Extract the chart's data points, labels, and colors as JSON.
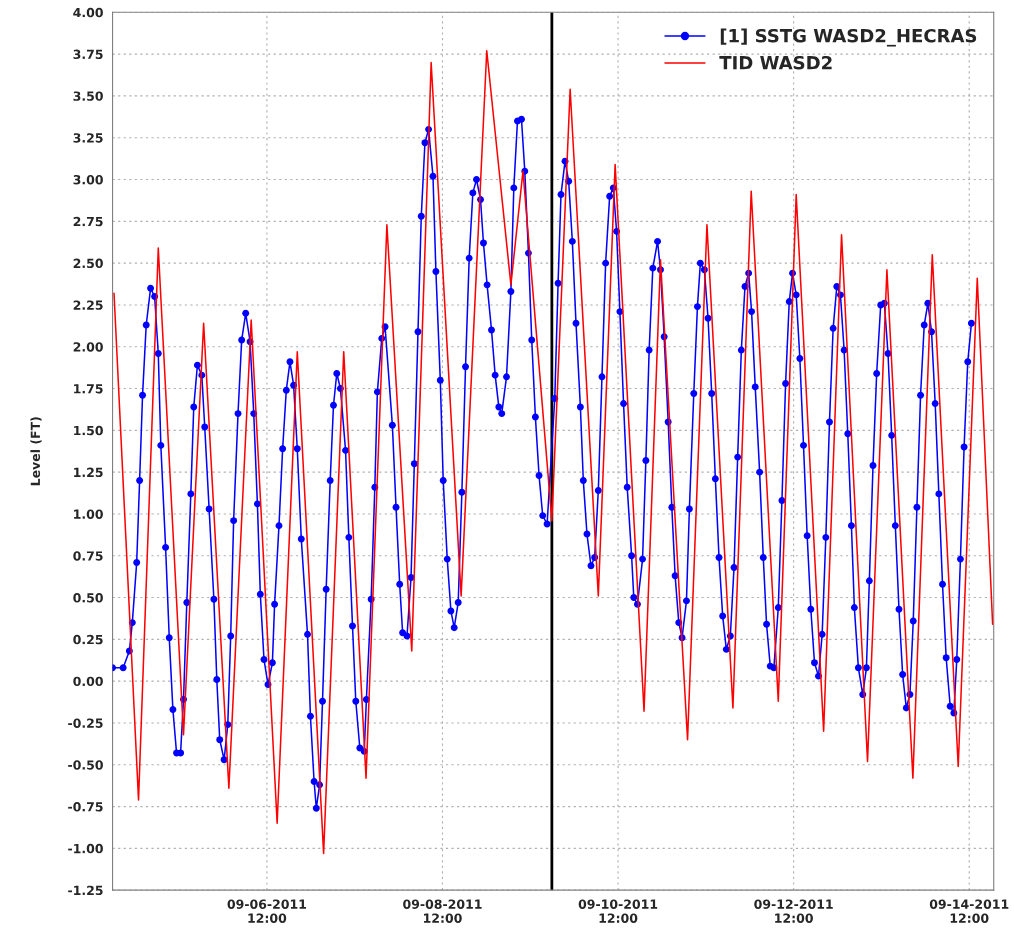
{
  "chart_data": {
    "type": "line",
    "ylabel": "Level (FT)",
    "xlim": [
      "2011-09-04T17:48",
      "2011-09-14T18:42"
    ],
    "xticks": [
      {
        "value": "2011-09-06T12:00",
        "label": "09-06-2011\n12:00"
      },
      {
        "value": "2011-09-08T12:00",
        "label": "09-08-2011\n12:00"
      },
      {
        "value": "2011-09-10T12:00",
        "label": "09-10-2011\n12:00"
      },
      {
        "value": "2011-09-12T12:00",
        "label": "09-12-2011\n12:00"
      },
      {
        "value": "2011-09-14T12:00",
        "label": "09-14-2011\n12:00"
      }
    ],
    "ylim": [
      -1.25,
      4.0
    ],
    "yticks": [
      {
        "value": -1.25,
        "label": "-1.25"
      },
      {
        "value": -1.0,
        "label": "-1.00"
      },
      {
        "value": -0.75,
        "label": "-0.75"
      },
      {
        "value": -0.5,
        "label": "-0.50"
      },
      {
        "value": -0.25,
        "label": "-0.25"
      },
      {
        "value": 0,
        "label": "0.00"
      },
      {
        "value": 0.25,
        "label": "0.25"
      },
      {
        "value": 0.5,
        "label": "0.50"
      },
      {
        "value": 0.75,
        "label": "0.75"
      },
      {
        "value": 1.0,
        "label": "1.00"
      },
      {
        "value": 1.25,
        "label": "1.25"
      },
      {
        "value": 1.5,
        "label": "1.50"
      },
      {
        "value": 1.75,
        "label": "1.75"
      },
      {
        "value": 2.0,
        "label": "2.00"
      },
      {
        "value": 2.25,
        "label": "2.25"
      },
      {
        "value": 2.5,
        "label": "2.50"
      },
      {
        "value": 2.75,
        "label": "2.75"
      },
      {
        "value": 3.0,
        "label": "3.00"
      },
      {
        "value": 3.25,
        "label": "3.25"
      },
      {
        "value": 3.5,
        "label": "3.50"
      },
      {
        "value": 3.75,
        "label": "3.75"
      },
      {
        "value": 4.0,
        "label": "4.00"
      }
    ],
    "grid": true,
    "legend": "top right",
    "ref_lines": [
      {
        "axis": "x",
        "value": "2011-09-09T17:54",
        "color": "#000000"
      }
    ],
    "series": [
      {
        "name": "[1] SSTG WASD2_HECRAS",
        "color": "#0000ff",
        "marker": "circle",
        "x": [
          "2011-09-04T17:48",
          "2011-09-04T20:42",
          "2011-09-04T22:24",
          "2011-09-04T23:12",
          "2011-09-05T00:24",
          "2011-09-05T01:12",
          "2011-09-05T02:00",
          "2011-09-05T03:00",
          "2011-09-05T04:12",
          "2011-09-05T05:18",
          "2011-09-05T06:18",
          "2011-09-05T07:00",
          "2011-09-05T08:18",
          "2011-09-05T09:18",
          "2011-09-05T10:18",
          "2011-09-05T11:18",
          "2011-09-05T12:24",
          "2011-09-05T13:12",
          "2011-09-05T14:06",
          "2011-09-05T15:12",
          "2011-09-05T16:00",
          "2011-09-05T17:00",
          "2011-09-05T18:12",
          "2011-09-05T19:00",
          "2011-09-05T20:12",
          "2011-09-05T21:30",
          "2011-09-05T22:18",
          "2011-09-05T23:06",
          "2011-09-06T00:18",
          "2011-09-06T01:18",
          "2011-09-06T02:06",
          "2011-09-06T02:54",
          "2011-09-06T04:06",
          "2011-09-06T05:06",
          "2011-09-06T06:12",
          "2011-09-06T07:24",
          "2011-09-06T08:24",
          "2011-09-06T09:24",
          "2011-09-06T10:12",
          "2011-09-06T11:12",
          "2011-09-06T12:18",
          "2011-09-06T13:30",
          "2011-09-06T14:06",
          "2011-09-06T15:18",
          "2011-09-06T16:18",
          "2011-09-06T17:18",
          "2011-09-06T18:18",
          "2011-09-06T19:18",
          "2011-09-06T20:18",
          "2011-09-06T21:24",
          "2011-09-06T23:06",
          "2011-09-06T23:54",
          "2011-09-07T00:54",
          "2011-09-07T01:30",
          "2011-09-07T02:24",
          "2011-09-07T03:12",
          "2011-09-07T04:12",
          "2011-09-07T05:18",
          "2011-09-07T06:12",
          "2011-09-07T07:06",
          "2011-09-07T08:06",
          "2011-09-07T09:30",
          "2011-09-07T10:24",
          "2011-09-07T11:24",
          "2011-09-07T12:18",
          "2011-09-07T13:24",
          "2011-09-07T14:36",
          "2011-09-07T15:12",
          "2011-09-07T16:30",
          "2011-09-07T17:30",
          "2011-09-07T18:12",
          "2011-09-07T19:24",
          "2011-09-07T20:18",
          "2011-09-07T22:18",
          "2011-09-07T23:18",
          "2011-09-08T00:18",
          "2011-09-08T01:06",
          "2011-09-08T02:18",
          "2011-09-08T03:24",
          "2011-09-08T04:18",
          "2011-09-08T05:18",
          "2011-09-08T06:12",
          "2011-09-08T07:12",
          "2011-09-08T08:12",
          "2011-09-08T09:24",
          "2011-09-08T10:12",
          "2011-09-08T11:24",
          "2011-09-08T12:12",
          "2011-09-08T13:18",
          "2011-09-08T14:18",
          "2011-09-08T15:12",
          "2011-09-08T16:18",
          "2011-09-08T17:18",
          "2011-09-08T18:18",
          "2011-09-08T19:18",
          "2011-09-08T20:18",
          "2011-09-08T21:18",
          "2011-09-08T22:24",
          "2011-09-08T23:12",
          "2011-09-09T00:12",
          "2011-09-09T01:24",
          "2011-09-09T02:24",
          "2011-09-09T03:24",
          "2011-09-09T04:12",
          "2011-09-09T05:30",
          "2011-09-09T06:42",
          "2011-09-09T07:30",
          "2011-09-09T08:30",
          "2011-09-09T09:36",
          "2011-09-09T10:30",
          "2011-09-09T11:30",
          "2011-09-09T12:24",
          "2011-09-09T13:24",
          "2011-09-09T14:24",
          "2011-09-09T15:24",
          "2011-09-09T16:36",
          "2011-09-09T18:42",
          "2011-09-09T19:36",
          "2011-09-09T20:24",
          "2011-09-09T21:30",
          "2011-09-09T22:30",
          "2011-09-09T23:30",
          "2011-09-10T00:30",
          "2011-09-10T01:42",
          "2011-09-10T02:30",
          "2011-09-10T03:30",
          "2011-09-10T04:36",
          "2011-09-10T05:36",
          "2011-09-10T06:36",
          "2011-09-10T07:36",
          "2011-09-10T08:36",
          "2011-09-10T09:42",
          "2011-09-10T10:42",
          "2011-09-10T11:36",
          "2011-09-10T12:30",
          "2011-09-10T13:30",
          "2011-09-10T14:30",
          "2011-09-10T15:42",
          "2011-09-10T16:18",
          "2011-09-10T17:18",
          "2011-09-10T18:42",
          "2011-09-10T19:36",
          "2011-09-10T20:30",
          "2011-09-10T21:30",
          "2011-09-10T22:48",
          "2011-09-10T23:36",
          "2011-09-11T00:36",
          "2011-09-11T01:42",
          "2011-09-11T02:42",
          "2011-09-11T03:36",
          "2011-09-11T04:36",
          "2011-09-11T05:30",
          "2011-09-11T06:42",
          "2011-09-11T07:30",
          "2011-09-11T08:42",
          "2011-09-11T09:42",
          "2011-09-11T10:30",
          "2011-09-11T11:36",
          "2011-09-11T12:36",
          "2011-09-11T13:36",
          "2011-09-11T14:36",
          "2011-09-11T15:36",
          "2011-09-11T16:36",
          "2011-09-11T17:36",
          "2011-09-11T18:42",
          "2011-09-11T19:42",
          "2011-09-11T20:42",
          "2011-09-11T21:42",
          "2011-09-11T22:42",
          "2011-09-11T23:42",
          "2011-09-12T00:30",
          "2011-09-12T01:30",
          "2011-09-12T02:42",
          "2011-09-12T03:42",
          "2011-09-12T04:36",
          "2011-09-12T05:36",
          "2011-09-12T06:36",
          "2011-09-12T07:48",
          "2011-09-12T08:48",
          "2011-09-12T09:48",
          "2011-09-12T10:48",
          "2011-09-12T11:42",
          "2011-09-12T12:42",
          "2011-09-12T13:42",
          "2011-09-12T14:42",
          "2011-09-12T15:42",
          "2011-09-12T16:42",
          "2011-09-12T17:42",
          "2011-09-12T18:48",
          "2011-09-12T19:48",
          "2011-09-12T20:48",
          "2011-09-12T21:48",
          "2011-09-12T22:48",
          "2011-09-12T23:48",
          "2011-09-13T00:48",
          "2011-09-13T01:48",
          "2011-09-13T02:48",
          "2011-09-13T03:48",
          "2011-09-13T04:36",
          "2011-09-13T05:42",
          "2011-09-13T06:54",
          "2011-09-13T07:54",
          "2011-09-13T08:42",
          "2011-09-13T09:42",
          "2011-09-13T10:42",
          "2011-09-13T11:48",
          "2011-09-13T12:48",
          "2011-09-13T13:48",
          "2011-09-13T14:48",
          "2011-09-13T15:48",
          "2011-09-13T16:48",
          "2011-09-13T17:48",
          "2011-09-13T18:48",
          "2011-09-13T19:48",
          "2011-09-13T20:42",
          "2011-09-13T21:42",
          "2011-09-13T22:42",
          "2011-09-13T23:42",
          "2011-09-14T00:42",
          "2011-09-14T01:42",
          "2011-09-14T02:42",
          "2011-09-14T03:42",
          "2011-09-14T04:42",
          "2011-09-14T05:42",
          "2011-09-14T06:48",
          "2011-09-14T07:48",
          "2011-09-14T08:36",
          "2011-09-14T09:36",
          "2011-09-14T10:36",
          "2011-09-14T11:36",
          "2011-09-14T12:36"
        ],
        "values": [
          0.08,
          0.08,
          0.18,
          0.35,
          0.71,
          1.2,
          1.71,
          2.13,
          2.35,
          2.3,
          1.96,
          1.41,
          0.8,
          0.26,
          -0.17,
          -0.43,
          -0.43,
          -0.11,
          0.47,
          1.12,
          1.64,
          1.89,
          1.83,
          1.52,
          1.03,
          0.49,
          0.01,
          -0.35,
          -0.47,
          -0.26,
          0.27,
          0.96,
          1.6,
          2.04,
          2.2,
          2.03,
          1.6,
          1.06,
          0.52,
          0.13,
          -0.02,
          0.11,
          0.46,
          0.93,
          1.39,
          1.74,
          1.91,
          1.77,
          1.39,
          0.85,
          0.28,
          -0.21,
          -0.6,
          -0.76,
          -0.62,
          -0.12,
          0.55,
          1.2,
          1.65,
          1.84,
          1.75,
          1.38,
          0.86,
          0.33,
          -0.12,
          -0.4,
          -0.42,
          -0.11,
          0.49,
          1.16,
          1.73,
          2.05,
          2.12,
          1.53,
          1.04,
          0.58,
          0.29,
          0.27,
          0.62,
          1.3,
          2.09,
          2.78,
          3.22,
          3.3,
          3.02,
          2.45,
          1.8,
          1.2,
          0.73,
          0.42,
          0.32,
          0.47,
          1.13,
          1.88,
          2.53,
          2.92,
          3.0,
          2.88,
          2.62,
          2.37,
          2.1,
          1.83,
          1.64,
          1.6,
          1.82,
          2.33,
          2.95,
          3.35,
          3.36,
          3.05,
          2.56,
          2.04,
          1.58,
          1.23,
          0.99,
          0.94,
          1.69,
          2.38,
          2.91,
          3.11,
          2.99,
          2.63,
          2.14,
          1.64,
          1.2,
          0.88,
          0.69,
          0.74,
          1.14,
          1.82,
          2.5,
          2.9,
          2.95,
          2.69,
          2.21,
          1.66,
          1.16,
          0.75,
          0.5,
          0.46,
          0.73,
          1.32,
          1.98,
          2.47,
          2.63,
          2.46,
          2.06,
          1.55,
          1.04,
          0.63,
          0.35,
          0.26,
          0.48,
          1.03,
          1.72,
          2.24,
          2.5,
          2.46,
          2.17,
          1.72,
          1.21,
          0.74,
          0.39,
          0.19,
          0.27,
          0.68,
          1.34,
          1.98,
          2.36,
          2.44,
          2.21,
          1.76,
          1.25,
          0.74,
          0.34,
          0.09,
          0.08,
          0.44,
          1.08,
          1.78,
          2.27,
          2.44,
          2.31,
          1.93,
          1.41,
          0.87,
          0.43,
          0.11,
          0.03,
          0.28,
          0.86,
          1.55,
          2.11,
          2.36,
          2.31,
          1.98,
          1.48,
          0.93,
          0.44,
          0.08,
          -0.08,
          0.08,
          0.6,
          1.29,
          1.84,
          2.25,
          2.26,
          1.96,
          1.47,
          0.93,
          0.43,
          0.04,
          -0.16,
          -0.08,
          0.36,
          1.04,
          1.71,
          2.13,
          2.26,
          2.09,
          1.66,
          1.12,
          0.58,
          0.14,
          -0.15,
          -0.19,
          0.13,
          0.73,
          1.4,
          1.91,
          2.14
        ]
      },
      {
        "name": "TID WASD2",
        "color": "#ff0000",
        "marker": "none",
        "x": [
          "2011-09-04T18:12",
          "2011-09-05T00:54",
          "2011-09-05T06:18",
          "2011-09-05T13:12",
          "2011-09-05T18:42",
          "2011-09-06T01:36",
          "2011-09-06T07:42",
          "2011-09-06T14:48",
          "2011-09-06T20:18",
          "2011-09-07T03:30",
          "2011-09-07T09:00",
          "2011-09-07T15:06",
          "2011-09-07T20:48",
          "2011-09-08T03:36",
          "2011-09-08T08:54",
          "2011-09-08T17:06",
          "2011-09-09T00:06",
          "2011-09-09T06:42",
          "2011-09-09T10:00",
          "2011-09-09T17:54",
          "2011-09-09T22:54",
          "2011-09-10T06:36",
          "2011-09-10T11:12",
          "2011-09-10T19:06",
          "2011-09-10T23:36",
          "2011-09-11T07:00",
          "2011-09-11T12:18",
          "2011-09-11T19:24",
          "2011-09-12T00:24",
          "2011-09-12T07:48",
          "2011-09-12T12:42",
          "2011-09-12T20:12",
          "2011-09-13T01:06",
          "2011-09-13T08:12",
          "2011-09-13T13:30",
          "2011-09-13T20:36",
          "2011-09-14T01:54",
          "2011-09-14T09:00",
          "2011-09-14T14:12",
          "2011-09-14T18:24"
        ],
        "values": [
          2.32,
          -0.71,
          2.59,
          -0.32,
          2.14,
          -0.64,
          2.16,
          -0.85,
          1.97,
          -1.03,
          1.97,
          -0.58,
          2.73,
          0.18,
          3.7,
          0.51,
          3.77,
          2.37,
          3.05,
          0.96,
          3.54,
          0.51,
          3.09,
          -0.18,
          2.52,
          -0.35,
          2.73,
          -0.16,
          2.93,
          -0.12,
          2.91,
          -0.3,
          2.67,
          -0.48,
          2.46,
          -0.58,
          2.55,
          -0.51,
          2.41,
          0.34
        ]
      }
    ]
  }
}
